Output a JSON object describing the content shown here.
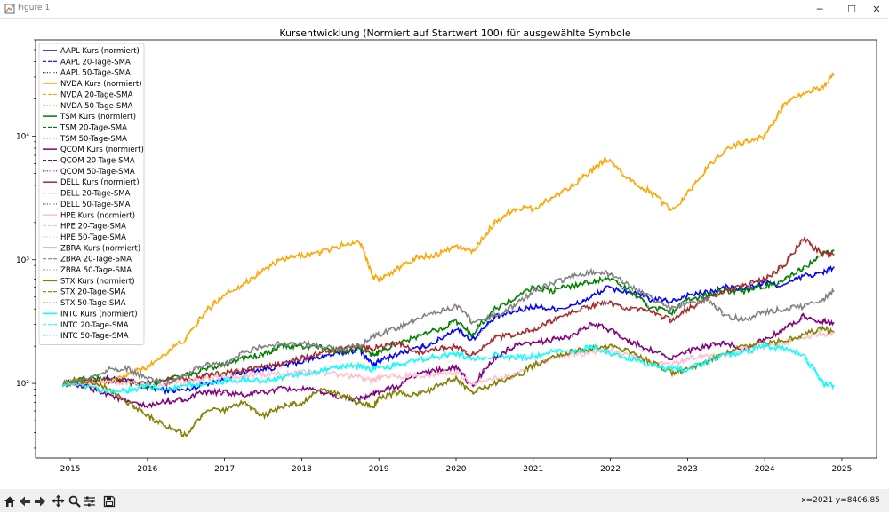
{
  "window": {
    "title": "Figure 1"
  },
  "status": {
    "coords": "x=2021 y=8406.85"
  },
  "icons": [
    "home-icon",
    "back-icon",
    "forward-icon",
    "pan-icon",
    "zoom-icon",
    "configure-subplots-icon",
    "save-icon"
  ],
  "chart_data": {
    "type": "line",
    "title": "Kursentwicklung (Normiert auf Startwert 100) für ausgewählte Symbole",
    "xlabel": "",
    "ylabel": "",
    "y_scale": "log",
    "xlim": [
      2014.55,
      2025.45
    ],
    "ylim": [
      25,
      60000
    ],
    "x_ticks": [
      2015,
      2016,
      2017,
      2018,
      2019,
      2020,
      2021,
      2022,
      2023,
      2024,
      2025
    ],
    "x_tick_labels": [
      "2015",
      "2016",
      "2017",
      "2018",
      "2019",
      "2020",
      "2021",
      "2022",
      "2023",
      "2024",
      "2025"
    ],
    "y_ticks": [
      100,
      1000,
      10000
    ],
    "y_tick_labels": [
      "10²",
      "10³",
      "10⁴"
    ],
    "grid": false,
    "legend_position": "top-left",
    "x": [
      2014.9,
      2015.25,
      2015.5,
      2015.75,
      2016.0,
      2016.25,
      2016.5,
      2016.75,
      2017.0,
      2017.25,
      2017.5,
      2017.75,
      2018.0,
      2018.25,
      2018.5,
      2018.75,
      2018.92,
      2019.0,
      2019.25,
      2019.5,
      2019.75,
      2020.0,
      2020.2,
      2020.5,
      2020.75,
      2021.0,
      2021.25,
      2021.5,
      2021.75,
      2021.95,
      2022.25,
      2022.5,
      2022.8,
      2023.0,
      2023.25,
      2023.5,
      2023.75,
      2024.0,
      2024.25,
      2024.5,
      2024.75,
      2024.9
    ],
    "series": [
      {
        "name": "AAPL Kurs (normiert)",
        "color": "#0000ff",
        "values": [
          100,
          105,
          110,
          104,
          92,
          88,
          88,
          100,
          108,
          125,
          130,
          140,
          150,
          165,
          175,
          190,
          140,
          150,
          175,
          190,
          220,
          280,
          225,
          340,
          380,
          420,
          400,
          420,
          500,
          590,
          550,
          480,
          460,
          520,
          540,
          600,
          580,
          650,
          620,
          740,
          780,
          880
        ]
      },
      {
        "name": "NVDA Kurs (normiert)",
        "color": "#ffa500",
        "values": [
          100,
          106,
          103,
          118,
          135,
          180,
          230,
          380,
          530,
          640,
          830,
          1000,
          1080,
          1150,
          1300,
          1420,
          750,
          700,
          850,
          1050,
          1100,
          1300,
          1150,
          2000,
          2600,
          2600,
          3200,
          4000,
          5200,
          6500,
          4400,
          3600,
          2500,
          3500,
          5500,
          8000,
          9000,
          10000,
          18000,
          22000,
          25000,
          32000
        ]
      },
      {
        "name": "TSM Kurs (normiert)",
        "color": "#008000",
        "values": [
          100,
          112,
          106,
          102,
          95,
          110,
          115,
          130,
          145,
          160,
          170,
          200,
          200,
          195,
          180,
          190,
          170,
          180,
          210,
          240,
          270,
          320,
          250,
          400,
          480,
          600,
          560,
          620,
          660,
          720,
          560,
          420,
          380,
          470,
          520,
          560,
          560,
          610,
          680,
          850,
          1100,
          1200
        ]
      },
      {
        "name": "QCOM Kurs (normiert)",
        "color": "#800080",
        "values": [
          100,
          92,
          82,
          70,
          65,
          72,
          75,
          85,
          85,
          80,
          85,
          90,
          90,
          85,
          78,
          75,
          82,
          85,
          95,
          120,
          128,
          135,
          95,
          160,
          200,
          210,
          230,
          240,
          300,
          280,
          220,
          190,
          160,
          180,
          200,
          210,
          190,
          230,
          270,
          350,
          320,
          310
        ]
      },
      {
        "name": "DELL Kurs (normiert)",
        "color": "#a52a2a",
        "values": [
          100,
          103,
          105,
          104,
          102,
          107,
          110,
          115,
          120,
          127,
          135,
          145,
          160,
          175,
          190,
          200,
          190,
          200,
          210,
          180,
          190,
          200,
          170,
          230,
          250,
          270,
          320,
          380,
          420,
          450,
          400,
          380,
          320,
          400,
          480,
          560,
          620,
          700,
          900,
          1500,
          1100,
          1100
        ]
      },
      {
        "name": "HPE Kurs (normiert)",
        "color": "#ffc0cb",
        "values": [
          100,
          102,
          104,
          100,
          95,
          98,
          102,
          108,
          112,
          115,
          118,
          120,
          125,
          122,
          118,
          112,
          106,
          110,
          115,
          116,
          120,
          122,
          100,
          110,
          115,
          140,
          160,
          170,
          180,
          185,
          170,
          150,
          140,
          160,
          165,
          170,
          190,
          200,
          210,
          240,
          250,
          260
        ]
      },
      {
        "name": "ZBRA Kurs (normiert)",
        "color": "#808080",
        "values": [
          100,
          110,
          130,
          130,
          110,
          100,
          120,
          145,
          140,
          180,
          200,
          210,
          210,
          200,
          190,
          200,
          240,
          250,
          280,
          340,
          380,
          420,
          320,
          350,
          420,
          550,
          650,
          730,
          800,
          780,
          620,
          500,
          400,
          450,
          480,
          350,
          330,
          380,
          400,
          420,
          480,
          560
        ]
      },
      {
        "name": "STX Kurs (normiert)",
        "color": "#808000",
        "values": [
          100,
          105,
          90,
          70,
          55,
          45,
          38,
          60,
          60,
          70,
          55,
          65,
          70,
          90,
          80,
          70,
          65,
          75,
          85,
          80,
          95,
          110,
          85,
          100,
          110,
          140,
          160,
          180,
          190,
          200,
          180,
          150,
          120,
          130,
          150,
          180,
          200,
          210,
          220,
          250,
          280,
          260
        ]
      },
      {
        "name": "INTC Kurs (normiert)",
        "color": "#00ffff",
        "values": [
          100,
          92,
          85,
          88,
          95,
          90,
          96,
          100,
          105,
          108,
          105,
          110,
          120,
          125,
          135,
          138,
          130,
          135,
          140,
          155,
          165,
          175,
          155,
          170,
          160,
          165,
          180,
          175,
          200,
          180,
          160,
          140,
          130,
          130,
          150,
          170,
          180,
          200,
          190,
          170,
          100,
          95
        ]
      }
    ],
    "sma_legend": [
      "AAPL 20-Tage-SMA",
      "AAPL 50-Tage-SMA",
      "NVDA 20-Tage-SMA",
      "NVDA 50-Tage-SMA",
      "TSM 20-Tage-SMA",
      "TSM 50-Tage-SMA",
      "QCOM 20-Tage-SMA",
      "QCOM 50-Tage-SMA",
      "DELL 20-Tage-SMA",
      "DELL 50-Tage-SMA",
      "HPE 20-Tage-SMA",
      "HPE 50-Tage-SMA",
      "ZBRA 20-Tage-SMA",
      "ZBRA 50-Tage-SMA",
      "STX 20-Tage-SMA",
      "STX 50-Tage-SMA",
      "INTC 20-Tage-SMA",
      "INTC 50-Tage-SMA"
    ]
  }
}
